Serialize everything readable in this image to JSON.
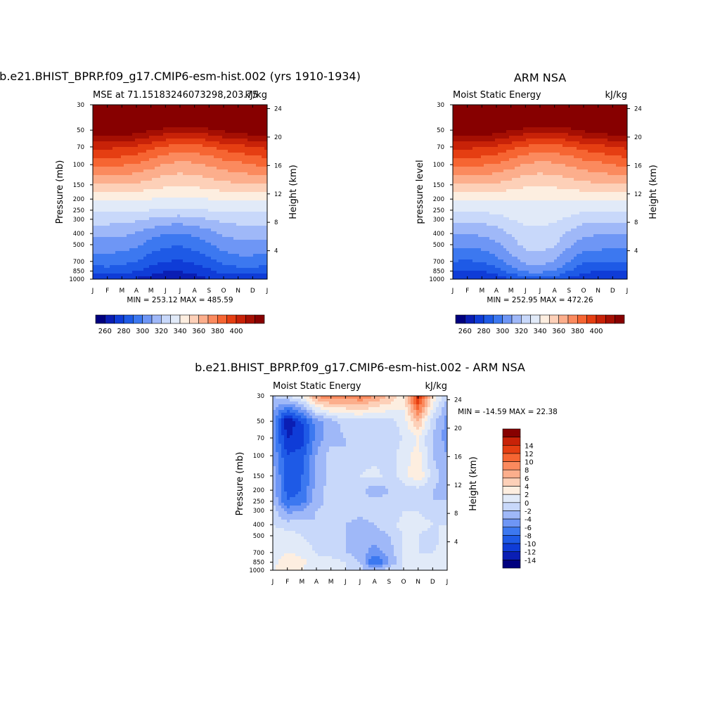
{
  "figure": {
    "colors": {
      "abs_scale": [
        "#00007f",
        "#0a1eb4",
        "#0f3cd7",
        "#1e5ae6",
        "#3c78f0",
        "#6e96f5",
        "#9fb8f8",
        "#c8d8fa",
        "#e1eaf8",
        "#fdeee0",
        "#fdd0b8",
        "#fcae8c",
        "#fb8a5e",
        "#f66532",
        "#e53e12",
        "#c82208",
        "#a50f03",
        "#870000"
      ],
      "diff_scale": [
        "#00007f",
        "#0a1eb4",
        "#0f3cd7",
        "#1e5ae6",
        "#3c78f0",
        "#6e96f5",
        "#9fb8f8",
        "#c8d8fa",
        "#e1eaf8",
        "#fdeee0",
        "#fdd0b8",
        "#fcae8c",
        "#fb8a5e",
        "#f66532",
        "#e53e12",
        "#c82208",
        "#870000"
      ]
    },
    "panels": [
      {
        "title": "b.e21.BHIST_BPRP.f09_g17.CMIP6-esm-hist.002 (yrs 1910-1934)",
        "left_label": "MSE at 71.15183246073298,203.75",
        "right_label": "kJ/kg",
        "ylabel": "Pressure (mb)",
        "ylabel_right": "Height (km)",
        "stats": "MIN = 253.12 MAX = 485.59"
      },
      {
        "title": "ARM NSA",
        "left_label": "Moist Static Energy",
        "right_label": "kJ/kg",
        "ylabel": "pressure level",
        "ylabel_right": "Height (km)",
        "stats": "MIN = 252.95 MAX = 472.26"
      },
      {
        "title": "b.e21.BHIST_BPRP.f09_g17.CMIP6-esm-hist.002 - ARM NSA",
        "left_label": "Moist Static Energy",
        "right_label": "kJ/kg",
        "ylabel": "Pressure (mb)",
        "ylabel_right": "Height (km)",
        "stats": "MIN = -14.59 MAX =  22.38"
      }
    ]
  },
  "chart_data": [
    {
      "type": "heatmap",
      "title": "b.e21.BHIST_BPRP.f09_g17.CMIP6-esm-hist.002 (yrs 1910-1934)",
      "subtitle": "MSE at 71.15183246073298,203.75",
      "units": "kJ/kg",
      "ylabel": "Pressure (mb)",
      "ylabel_right": "Height (km)",
      "x": [
        "J",
        "F",
        "M",
        "A",
        "M",
        "J",
        "J",
        "A",
        "S",
        "O",
        "N",
        "D",
        "J"
      ],
      "y_ticks": [
        30,
        50,
        70,
        100,
        150,
        200,
        250,
        300,
        400,
        500,
        700,
        850,
        1000
      ],
      "y_scale": "log",
      "y_reversed": true,
      "height_ticks_km": [
        4,
        8,
        12,
        16,
        20,
        24
      ],
      "levels": [
        1000,
        850,
        700,
        500,
        400,
        300,
        250,
        200,
        150,
        100,
        70,
        50,
        30
      ],
      "values": [
        [
          263,
          263,
          263,
          258,
          255,
          254,
          254,
          256,
          260,
          264,
          262,
          263,
          263
        ],
        [
          275,
          276,
          273,
          271,
          265,
          260,
          260,
          263,
          268,
          274,
          275,
          276,
          275
        ],
        [
          284,
          285,
          283,
          280,
          274,
          270,
          269,
          272,
          277,
          283,
          286,
          286,
          284
        ],
        [
          296,
          296,
          295,
          292,
          286,
          282,
          281,
          284,
          289,
          295,
          297,
          297,
          296
        ],
        [
          303,
          303,
          302,
          299,
          294,
          290,
          289,
          292,
          296,
          302,
          303,
          303,
          303
        ],
        [
          314,
          314,
          313,
          312,
          309,
          306,
          305,
          307,
          310,
          313,
          314,
          315,
          314
        ],
        [
          322,
          322,
          322,
          321,
          320,
          318,
          318,
          319,
          320,
          322,
          322,
          322,
          322
        ],
        [
          331,
          331,
          331,
          331,
          330,
          329,
          329,
          329,
          330,
          331,
          331,
          331,
          331
        ],
        [
          350,
          350,
          349,
          348,
          345,
          342,
          341,
          342,
          344,
          347,
          348,
          350,
          350
        ],
        [
          372,
          372,
          371,
          369,
          364,
          359,
          357,
          358,
          361,
          365,
          367,
          370,
          372
        ],
        [
          392,
          392,
          391,
          388,
          383,
          378,
          376,
          376,
          379,
          384,
          386,
          390,
          392
        ],
        [
          420,
          420,
          419,
          416,
          411,
          406,
          404,
          404,
          407,
          412,
          414,
          418,
          420
        ],
        [
          470,
          470,
          469,
          467,
          463,
          459,
          457,
          457,
          460,
          464,
          466,
          469,
          470
        ]
      ],
      "colorbar": {
        "labels": [
          260,
          280,
          300,
          320,
          340,
          360,
          380,
          400
        ]
      },
      "stats": {
        "min": 253.12,
        "max": 485.59
      }
    },
    {
      "type": "heatmap",
      "title": "ARM NSA",
      "subtitle": "Moist Static Energy",
      "units": "kJ/kg",
      "ylabel": "pressure level",
      "ylabel_right": "Height (km)",
      "x": [
        "J",
        "F",
        "M",
        "A",
        "M",
        "J",
        "J",
        "A",
        "S",
        "O",
        "N",
        "D",
        "J"
      ],
      "y_ticks": [
        30,
        50,
        70,
        100,
        150,
        200,
        250,
        300,
        400,
        500,
        700,
        850,
        1000
      ],
      "y_scale": "log",
      "y_reversed": true,
      "height_ticks_km": [
        4,
        8,
        12,
        16,
        20,
        24
      ],
      "levels": [
        1000,
        850,
        700,
        500,
        400,
        300,
        250,
        200,
        150,
        100,
        70,
        50,
        30
      ],
      "values": [
        [
          260,
          259,
          260,
          263,
          270,
          275,
          276,
          274,
          268,
          263,
          262,
          261,
          260
        ],
        [
          268,
          268,
          270,
          275,
          285,
          292,
          293,
          290,
          280,
          272,
          270,
          269,
          268
        ],
        [
          280,
          279,
          281,
          286,
          295,
          303,
          304,
          300,
          290,
          282,
          281,
          280,
          280
        ],
        [
          293,
          292,
          294,
          298,
          306,
          313,
          314,
          311,
          302,
          295,
          294,
          293,
          293
        ],
        [
          301,
          300,
          302,
          305,
          311,
          316,
          317,
          315,
          308,
          302,
          301,
          301,
          301
        ],
        [
          313,
          312,
          313,
          316,
          320,
          323,
          323,
          322,
          318,
          314,
          313,
          313,
          313
        ],
        [
          322,
          322,
          322,
          323,
          325,
          327,
          327,
          326,
          324,
          322,
          322,
          322,
          322
        ],
        [
          331,
          331,
          331,
          331,
          331,
          331,
          330,
          331,
          331,
          331,
          331,
          331,
          331
        ],
        [
          350,
          350,
          349,
          348,
          345,
          342,
          341,
          342,
          344,
          347,
          348,
          350,
          350
        ],
        [
          372,
          372,
          371,
          369,
          364,
          359,
          357,
          358,
          361,
          365,
          367,
          370,
          372
        ],
        [
          392,
          392,
          391,
          388,
          383,
          378,
          376,
          376,
          379,
          384,
          386,
          390,
          392
        ],
        [
          420,
          420,
          419,
          416,
          411,
          406,
          404,
          404,
          407,
          412,
          414,
          418,
          420
        ],
        [
          465,
          465,
          464,
          462,
          458,
          454,
          452,
          452,
          455,
          459,
          461,
          464,
          465
        ]
      ],
      "colorbar": {
        "labels": [
          260,
          280,
          300,
          320,
          340,
          360,
          380,
          400
        ]
      },
      "stats": {
        "min": 252.95,
        "max": 472.26
      }
    },
    {
      "type": "heatmap",
      "title": "b.e21.BHIST_BPRP.f09_g17.CMIP6-esm-hist.002 - ARM NSA",
      "subtitle": "Moist Static Energy",
      "units": "kJ/kg",
      "ylabel": "Pressure (mb)",
      "ylabel_right": "Height (km)",
      "x": [
        "J",
        "F",
        "M",
        "A",
        "M",
        "J",
        "J",
        "A",
        "S",
        "O",
        "N",
        "D",
        "J"
      ],
      "y_ticks": [
        30,
        50,
        70,
        100,
        150,
        200,
        250,
        300,
        400,
        500,
        700,
        850,
        1000
      ],
      "y_scale": "log",
      "y_reversed": true,
      "height_ticks_km": [
        4,
        8,
        12,
        16,
        20,
        24
      ],
      "levels": [
        1000,
        850,
        700,
        500,
        400,
        300,
        250,
        200,
        150,
        100,
        70,
        50,
        30
      ],
      "values": [
        [
          2,
          3,
          2,
          0,
          1,
          0,
          -1,
          -3,
          -1,
          0,
          0,
          1,
          2
        ],
        [
          1,
          4,
          3,
          0,
          1,
          0,
          -2,
          -9,
          -4,
          0,
          0,
          0,
          1
        ],
        [
          1,
          2,
          1,
          0,
          -1,
          -2,
          -3,
          -5,
          -3,
          0,
          0,
          0,
          1
        ],
        [
          1,
          1,
          0,
          -1,
          -2,
          -2,
          -3,
          -3,
          -2,
          0,
          0,
          -1,
          1
        ],
        [
          0,
          -1,
          -1,
          -2,
          -2,
          -2,
          -3,
          -2,
          -1,
          1,
          1,
          0,
          0
        ],
        [
          -1,
          -5,
          -4,
          -2,
          -1,
          -1,
          -1,
          -1,
          -2,
          0,
          0,
          -1,
          -1
        ],
        [
          -2,
          -8,
          -7,
          -3,
          -1,
          -1,
          -2,
          -1,
          -1,
          -1,
          -1,
          -2,
          -2
        ],
        [
          -3,
          -9,
          -8,
          -3,
          -1,
          -1,
          -1,
          -4,
          -2,
          -1,
          -1,
          -2,
          -3
        ],
        [
          -3,
          -9,
          -8,
          -4,
          -1,
          -1,
          0,
          1,
          -1,
          1,
          4,
          -1,
          -3
        ],
        [
          -4,
          -10,
          -9,
          -4,
          -1,
          -2,
          -1,
          -1,
          -1,
          1,
          3,
          -2,
          -4
        ],
        [
          -5,
          -12,
          -11,
          -5,
          -3,
          -2,
          -2,
          -1,
          -1,
          0,
          2,
          -2,
          -5
        ],
        [
          -5,
          -14,
          -10,
          -5,
          -3,
          -1,
          -1,
          -1,
          -1,
          1,
          6,
          -1,
          -5
        ],
        [
          -2,
          0,
          2,
          8,
          10,
          9,
          10,
          8,
          6,
          3,
          15,
          4,
          -2
        ]
      ],
      "colorbar": {
        "labels": [
          14,
          12,
          10,
          8,
          6,
          4,
          2,
          0,
          -2,
          -4,
          -6,
          -8,
          -10,
          -12,
          -14
        ]
      },
      "stats": {
        "min": -14.59,
        "max": 22.38
      }
    }
  ]
}
